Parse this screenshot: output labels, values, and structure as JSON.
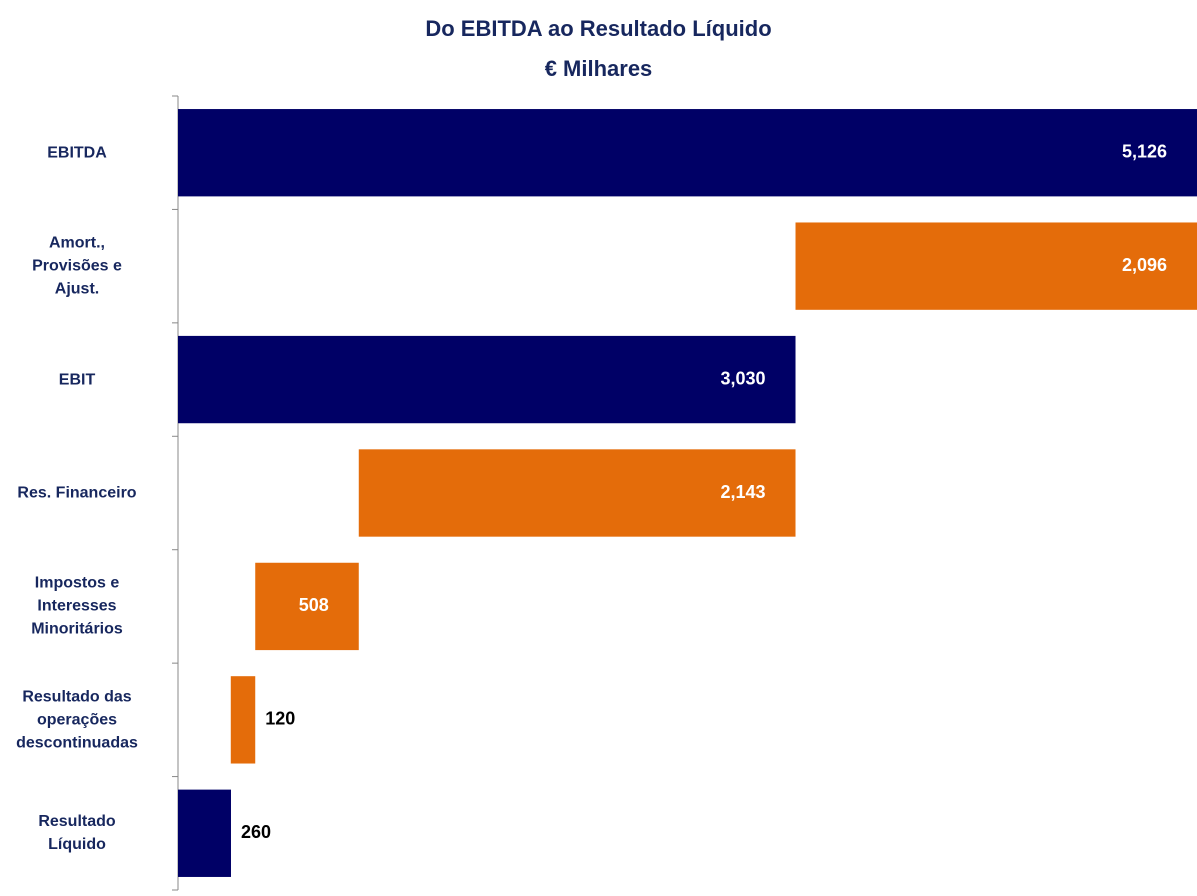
{
  "chart_data": {
    "type": "waterfall",
    "title": "Do EBITDA ao Resultado Líquido",
    "subtitle": "€ Milhares",
    "orientation": "horizontal",
    "categories": [
      "EBITDA",
      "Amort.,\nProvisões e\nAjust.",
      "EBIT",
      "Res. Financeiro",
      "Impostos e\nInteresses\nMinoritários",
      "Resultado das\noperações\ndescontinuadas",
      "Resultado\nLíquido"
    ],
    "values": [
      5126,
      2096,
      3030,
      2143,
      508,
      120,
      260
    ],
    "value_labels": [
      "5,126",
      "2,096",
      "3,030",
      "2,143",
      "508",
      "120",
      "260"
    ],
    "measure": [
      "total",
      "decrease",
      "total",
      "decrease",
      "decrease",
      "decrease",
      "total"
    ],
    "colors": {
      "total": "#000066",
      "decrease": "#e46c0a"
    },
    "xlim": [
      0,
      5000
    ]
  }
}
